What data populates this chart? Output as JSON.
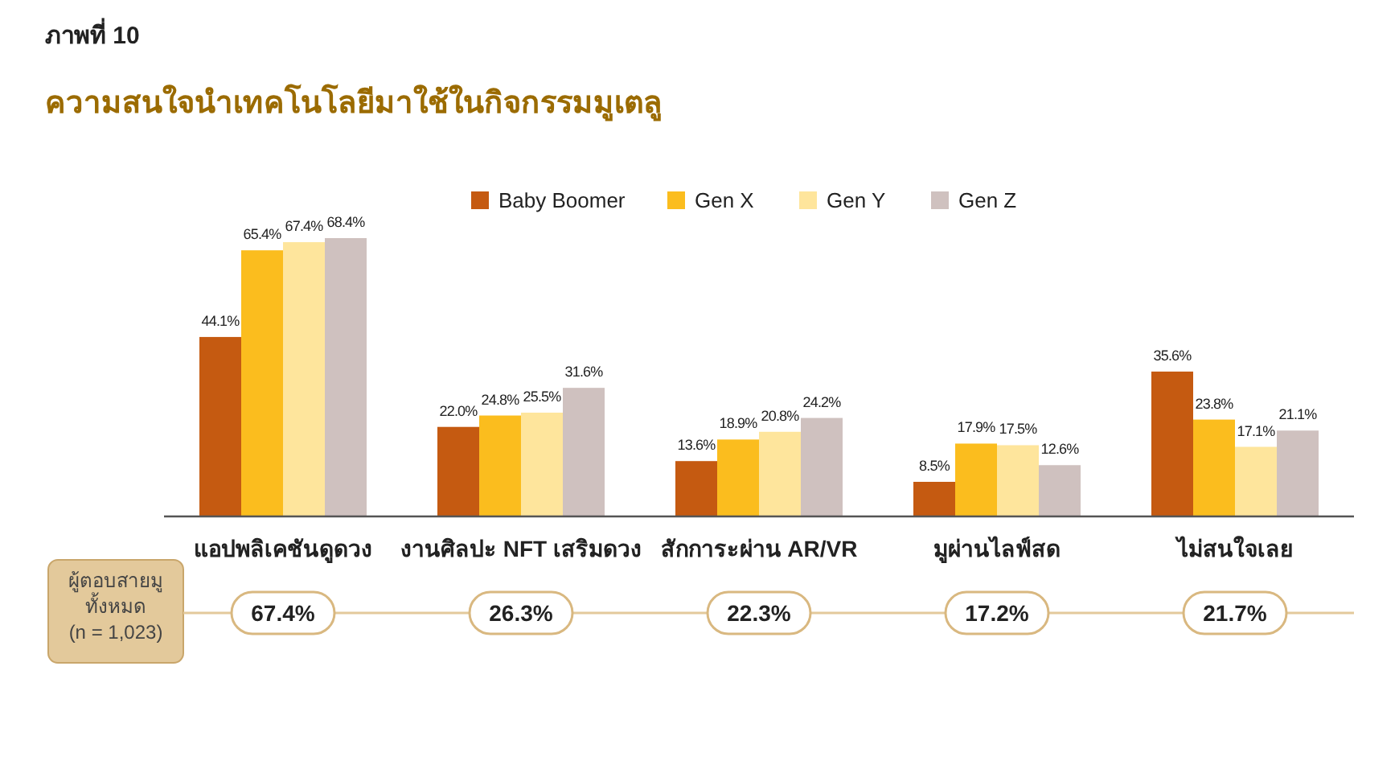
{
  "chart_data": {
    "type": "bar",
    "title": "ความสนใจนำเทคโนโลยีมาใช้ในกิจกรรมมูเตลู",
    "categories": [
      "แอปพลิเคชันดูดวง",
      "งานศิลปะ NFT เสริมดวง",
      "สักการะผ่าน AR/VR",
      "มูผ่านไลฟ์สด",
      "ไม่สนใจเลย"
    ],
    "series": [
      {
        "name": "Baby Boomer",
        "color": "#c55a11",
        "values": [
          44.1,
          22.0,
          13.6,
          8.5,
          35.6
        ],
        "value_labels": [
          "44.1%",
          "22.0%",
          "13.6%",
          "8.5%",
          "35.6%"
        ]
      },
      {
        "name": "Gen X",
        "color": "#fbbd1e",
        "values": [
          65.4,
          24.8,
          18.9,
          17.9,
          23.8
        ],
        "value_labels": [
          "65.4%",
          "24.8%",
          "18.9%",
          "17.9%",
          "23.8%"
        ]
      },
      {
        "name": "Gen Y",
        "color": "#fee59c",
        "values": [
          67.4,
          25.5,
          20.8,
          17.5,
          17.1
        ],
        "value_labels": [
          "67.4%",
          "25.5%",
          "20.8%",
          "17.5%",
          "17.1%"
        ]
      },
      {
        "name": "Gen Z",
        "color": "#cfc1bf",
        "values": [
          68.4,
          31.6,
          24.2,
          12.6,
          21.1
        ],
        "value_labels": [
          "68.4%",
          "31.6%",
          "24.2%",
          "12.6%",
          "21.1%"
        ]
      }
    ],
    "legend": "top",
    "annotations": [
      "ภาพที่ 10",
      "ผู้ตอบสายมู\nทั้งหมด\n(n = 1,023)",
      "67.4%",
      "26.3%",
      "22.3%",
      "17.2%",
      "21.7%"
    ]
  }
}
